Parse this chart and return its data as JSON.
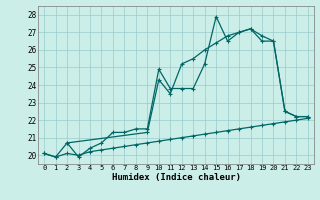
{
  "xlabel": "Humidex (Indice chaleur)",
  "bg_color": "#cceee8",
  "line_color": "#006666",
  "grid_color": "#99cccc",
  "xlim": [
    -0.5,
    23.5
  ],
  "ylim": [
    19.5,
    28.5
  ],
  "xticks": [
    0,
    1,
    2,
    3,
    4,
    5,
    6,
    7,
    8,
    9,
    10,
    11,
    12,
    13,
    14,
    15,
    16,
    17,
    18,
    19,
    20,
    21,
    22,
    23
  ],
  "yticks": [
    20,
    21,
    22,
    23,
    24,
    25,
    26,
    27,
    28
  ],
  "line1_x": [
    0,
    1,
    2,
    3,
    4,
    5,
    6,
    7,
    8,
    9,
    10,
    11,
    12,
    13,
    14,
    15,
    16,
    17,
    18,
    19,
    20,
    21,
    22,
    23
  ],
  "line1_y": [
    20.1,
    19.9,
    20.1,
    20.0,
    20.2,
    20.3,
    20.4,
    20.5,
    20.6,
    20.7,
    20.8,
    20.9,
    21.0,
    21.1,
    21.2,
    21.3,
    21.4,
    21.5,
    21.6,
    21.7,
    21.8,
    21.9,
    22.0,
    22.1
  ],
  "line2_x": [
    0,
    1,
    2,
    3,
    4,
    5,
    6,
    7,
    8,
    9,
    10,
    11,
    12,
    13,
    14,
    15,
    16,
    17,
    18,
    19,
    20,
    21,
    22,
    23
  ],
  "line2_y": [
    20.1,
    19.9,
    20.7,
    19.9,
    20.4,
    20.7,
    21.3,
    21.3,
    21.5,
    21.5,
    24.9,
    23.8,
    23.8,
    23.8,
    25.2,
    27.9,
    26.5,
    27.0,
    27.2,
    26.5,
    26.5,
    22.5,
    22.2,
    22.2
  ],
  "line3_x": [
    2,
    9,
    10,
    11,
    12,
    13,
    14,
    15,
    16,
    17,
    18,
    19,
    20,
    21,
    22,
    23
  ],
  "line3_y": [
    20.7,
    21.3,
    24.3,
    23.5,
    25.2,
    25.5,
    26.0,
    26.4,
    26.8,
    27.0,
    27.2,
    26.8,
    26.5,
    22.5,
    22.2,
    22.2
  ]
}
